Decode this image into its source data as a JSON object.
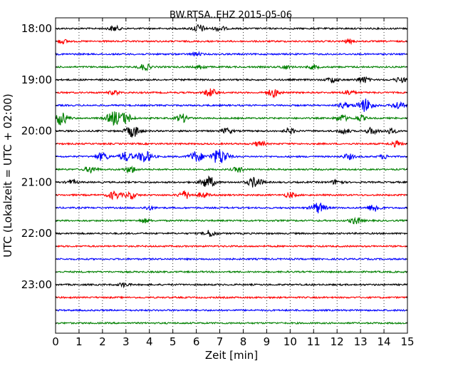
{
  "chart_data": {
    "type": "line",
    "title": "BW.RTSA..EHZ 2015-05-06",
    "xlabel": "Zeit  [min]",
    "ylabel": "UTC (Lokalzeit = UTC + 02:00)",
    "xlim": [
      0,
      15
    ],
    "x_ticks": [
      0,
      1,
      2,
      3,
      4,
      5,
      6,
      7,
      8,
      9,
      10,
      11,
      12,
      13,
      14,
      15
    ],
    "y_tick_labels": [
      "18:00",
      "19:00",
      "20:00",
      "21:00",
      "22:00",
      "23:00"
    ],
    "trace_minutes_per_line": 15,
    "colors": [
      "#000000",
      "#ff0000",
      "#0000ff",
      "#008000"
    ],
    "grid": {
      "vertical_dotted": true
    },
    "traces": [
      {
        "start": "18:00",
        "color": "#000000",
        "events": [
          [
            2.5,
            0.4
          ],
          [
            6.1,
            0.6
          ],
          [
            7.0,
            0.4
          ]
        ]
      },
      {
        "start": "18:15",
        "color": "#ff0000",
        "events": [
          [
            0.3,
            0.3
          ],
          [
            12.5,
            0.3
          ]
        ]
      },
      {
        "start": "18:30",
        "color": "#0000ff",
        "events": [
          [
            6.0,
            0.25
          ]
        ]
      },
      {
        "start": "18:45",
        "color": "#008000",
        "events": [
          [
            3.8,
            0.5
          ],
          [
            6.2,
            0.3
          ],
          [
            9.8,
            0.3
          ],
          [
            11.0,
            0.3
          ]
        ]
      },
      {
        "start": "19:00",
        "color": "#000000",
        "events": [
          [
            11.8,
            0.4
          ],
          [
            13.1,
            0.5
          ],
          [
            14.7,
            0.4
          ]
        ]
      },
      {
        "start": "19:15",
        "color": "#ff0000",
        "events": [
          [
            6.6,
            0.6
          ],
          [
            9.3,
            0.6
          ],
          [
            12.5,
            0.4
          ],
          [
            2.5,
            0.3
          ]
        ]
      },
      {
        "start": "19:30",
        "color": "#0000ff",
        "events": [
          [
            13.2,
            1.0
          ],
          [
            14.6,
            0.6
          ],
          [
            12.3,
            0.4
          ]
        ]
      },
      {
        "start": "19:45",
        "color": "#008000",
        "events": [
          [
            0.2,
            1.0
          ],
          [
            2.5,
            1.0
          ],
          [
            3.0,
            0.7
          ],
          [
            5.4,
            0.6
          ],
          [
            12.2,
            0.5
          ],
          [
            13.0,
            0.4
          ]
        ]
      },
      {
        "start": "20:00",
        "color": "#000000",
        "events": [
          [
            3.3,
            0.9
          ],
          [
            7.3,
            0.4
          ],
          [
            10.0,
            0.4
          ],
          [
            12.3,
            0.4
          ],
          [
            13.5,
            0.5
          ],
          [
            14.3,
            0.4
          ]
        ]
      },
      {
        "start": "20:15",
        "color": "#ff0000",
        "events": [
          [
            8.7,
            0.4
          ],
          [
            14.5,
            0.4
          ]
        ]
      },
      {
        "start": "20:30",
        "color": "#0000ff",
        "events": [
          [
            2.0,
            0.6
          ],
          [
            3.0,
            0.7
          ],
          [
            3.8,
            0.9
          ],
          [
            6.0,
            0.8
          ],
          [
            7.0,
            1.2
          ],
          [
            12.5,
            0.4
          ],
          [
            14.0,
            0.3
          ]
        ]
      },
      {
        "start": "20:45",
        "color": "#008000",
        "events": [
          [
            1.5,
            0.5
          ],
          [
            3.2,
            0.5
          ],
          [
            7.8,
            0.4
          ]
        ]
      },
      {
        "start": "21:00",
        "color": "#000000",
        "events": [
          [
            6.5,
            0.9
          ],
          [
            8.5,
            0.8
          ],
          [
            12.0,
            0.4
          ],
          [
            0.7,
            0.3
          ]
        ]
      },
      {
        "start": "21:15",
        "color": "#ff0000",
        "events": [
          [
            2.5,
            0.6
          ],
          [
            3.2,
            0.5
          ],
          [
            5.5,
            0.6
          ],
          [
            6.3,
            0.4
          ],
          [
            10.0,
            0.4
          ]
        ]
      },
      {
        "start": "21:30",
        "color": "#0000ff",
        "events": [
          [
            11.2,
            0.8
          ],
          [
            13.6,
            0.6
          ],
          [
            4.0,
            0.3
          ]
        ]
      },
      {
        "start": "21:45",
        "color": "#008000",
        "events": [
          [
            3.8,
            0.3
          ],
          [
            12.8,
            0.5
          ]
        ]
      },
      {
        "start": "22:00",
        "color": "#000000",
        "events": [
          [
            6.6,
            0.5
          ]
        ]
      },
      {
        "start": "22:15",
        "color": "#ff0000",
        "events": []
      },
      {
        "start": "22:30",
        "color": "#0000ff",
        "events": []
      },
      {
        "start": "22:45",
        "color": "#008000",
        "events": []
      },
      {
        "start": "23:00",
        "color": "#000000",
        "events": [
          [
            2.9,
            0.3
          ]
        ]
      },
      {
        "start": "23:15",
        "color": "#ff0000",
        "events": []
      },
      {
        "start": "23:30",
        "color": "#0000ff",
        "events": []
      },
      {
        "start": "23:45",
        "color": "#008000",
        "events": []
      }
    ]
  }
}
